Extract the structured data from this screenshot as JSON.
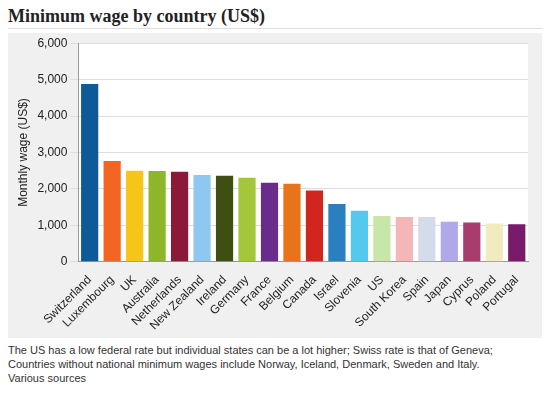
{
  "chart_data": {
    "type": "bar",
    "title": "Minimum wage by country (US$)",
    "y_label": "Monthly wage (US$)",
    "categories": [
      "Switzerland",
      "Luxembourg",
      "UK",
      "Australia",
      "Netherlands",
      "New Zealand",
      "Ireland",
      "Germany",
      "France",
      "Belgium",
      "Canada",
      "Israel",
      "Slovenia",
      "US",
      "South Korea",
      "Spain",
      "Japan",
      "Cyprus",
      "Poland",
      "Portugal"
    ],
    "values": [
      4880,
      2770,
      2500,
      2490,
      2470,
      2380,
      2360,
      2310,
      2170,
      2140,
      1960,
      1590,
      1400,
      1260,
      1230,
      1230,
      1100,
      1080,
      1050,
      1030
    ],
    "colors": [
      "#0d5a96",
      "#f26522",
      "#f5c518",
      "#8db62a",
      "#8b1a3a",
      "#8ec8f0",
      "#3f4f12",
      "#a4c639",
      "#6a2c8a",
      "#e8731a",
      "#d0261d",
      "#2a7fbf",
      "#55c8f0",
      "#c8e6a8",
      "#f4b6b6",
      "#d4dcea",
      "#b0a8e8",
      "#a83c6c",
      "#f0ecc0",
      "#7a1a6a"
    ],
    "ylim": [
      0,
      6000
    ],
    "yticks": [
      0,
      {
        "value": 1000,
        "label": "1,000"
      },
      {
        "value": 2000,
        "label": "2,000"
      },
      {
        "value": 3000,
        "label": "3,000"
      },
      {
        "value": 4000,
        "label": "4,000"
      },
      {
        "value": 5000,
        "label": "5,000"
      },
      {
        "value": 6000,
        "label": "6,000"
      }
    ],
    "grid": true,
    "caption": "The US has a low federal rate but individual states can be a lot higher; Swiss rate is that of Geneva; Countries without national minimum wages include Norway, Iceland, Denmark, Sweden and Italy.",
    "source": "Various sources"
  }
}
